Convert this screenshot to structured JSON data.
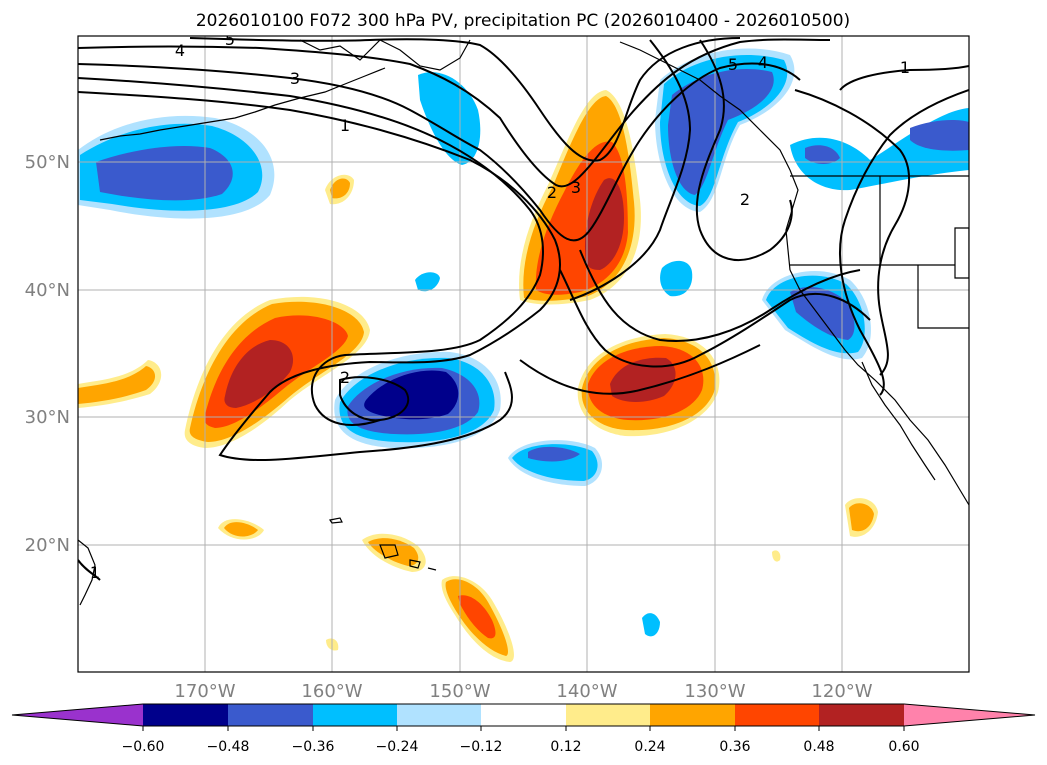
{
  "title": "2026010100 F072 300 hPa PV, precipitation PC (2026010400 - 2026010500)",
  "axes": {
    "lon_ticks": [
      "170°W",
      "160°W",
      "150°W",
      "140°W",
      "130°W",
      "120°W"
    ],
    "lat_ticks": [
      "50°N",
      "40°N",
      "30°N",
      "20°N"
    ]
  },
  "contours": {
    "pv_labels": [
      "5",
      "4",
      "3",
      "1",
      "2",
      "3",
      "2",
      "5",
      "4",
      "1",
      "2",
      "1"
    ]
  },
  "colorbar": {
    "tick_labels": [
      "−0.60",
      "−0.48",
      "−0.36",
      "−0.24",
      "−0.12",
      "0.12",
      "0.24",
      "0.36",
      "0.48",
      "0.60"
    ],
    "bins": [
      {
        "color": "#9a32cd",
        "range": "< -0.60"
      },
      {
        "color": "#00008b",
        "range": "-0.60 to -0.48"
      },
      {
        "color": "#3a5acd",
        "range": "-0.48 to -0.36"
      },
      {
        "color": "#00bfff",
        "range": "-0.36 to -0.24"
      },
      {
        "color": "#b0e2ff",
        "range": "-0.24 to -0.12"
      },
      {
        "color": "#ffffff",
        "range": "-0.12 to 0.12"
      },
      {
        "color": "#ffec8b",
        "range": "0.12 to 0.24"
      },
      {
        "color": "#ffa500",
        "range": "0.24 to 0.36"
      },
      {
        "color": "#ff4500",
        "range": "0.36 to 0.48"
      },
      {
        "color": "#b22222",
        "range": "0.48 to 0.60"
      },
      {
        "color": "#ff82ab",
        "range": "> 0.60"
      }
    ]
  }
}
